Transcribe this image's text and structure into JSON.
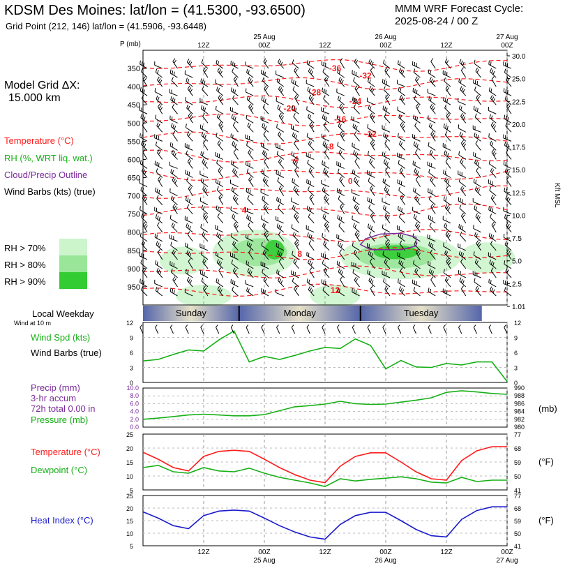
{
  "header": {
    "station": "KDSM Des Moines:  lat/lon = (41.5300, -93.6500)",
    "grid_point": "Grid Point (212, 146) lat/lon = (41.5906, -93.6448)",
    "cycle_line1": "MMM WRF Forecast Cycle:",
    "cycle_line2": "2025-08-24 / 00  Z"
  },
  "left_panel": {
    "grid_dx_line1": "Model Grid ΔX:",
    "grid_dx_line2": "15.000 km",
    "legend_temp": "Temperature (°C)",
    "legend_rh": "RH (%, WRT liq. wat.)",
    "legend_cloud": "Cloud/Precip Outline",
    "legend_wind": "Wind Barbs (kts) (true)",
    "rh70": "RH > 70%",
    "rh80": "RH > 80%",
    "rh90": "RH > 90%",
    "local_weekday": "Local Weekday",
    "wind_at_10m": "Wind at 10 m",
    "wind_spd": "Wind Spd (kts)",
    "wind_barbs": "Wind Barbs (true)",
    "precip_line1": "Precip (mm)",
    "precip_line2": "3-hr accum",
    "precip_line3": "72h total 0.00 in",
    "pressure": "Pressure (mb)",
    "temperature": "Temperature (°C)",
    "dewpoint": "Dewpoint (°C)",
    "heat_index": "Heat Index (°C)",
    "unit_mb": "(mb)",
    "unit_f1": "(°F)",
    "unit_f2": "(°F)",
    "kft_msl": "Kft MSL",
    "p_mb": "P (mb)"
  },
  "colors": {
    "temp": "#ff1a1a",
    "rh": "#16b016",
    "cloud": "#7a2a9a",
    "heat": "#1a1acc",
    "rh70": "#ccf5cc",
    "rh80": "#99e699",
    "rh90": "#33cc33"
  },
  "chart_data": [
    {
      "type": "line",
      "name": "time-height cross section",
      "x_top_labels": [
        {
          "t": 12,
          "label": "12Z"
        },
        {
          "t": 24,
          "label": "00Z",
          "date": "25 Aug"
        },
        {
          "t": 36,
          "label": "12Z"
        },
        {
          "t": 48,
          "label": "00Z",
          "date": "26 Aug"
        },
        {
          "t": 60,
          "label": "12Z"
        },
        {
          "t": 72,
          "label": "00Z",
          "date": "27 Aug"
        }
      ],
      "p_ticks": [
        350,
        400,
        450,
        500,
        550,
        600,
        650,
        700,
        750,
        800,
        850,
        900,
        950
      ],
      "ylim_p": [
        1000,
        300
      ],
      "height_ticks": [
        "30.0",
        "25.0",
        "22.5",
        "20.0",
        "17.5",
        "15.0",
        "12.5",
        "10.0",
        "7.5",
        "5.0",
        "2.5",
        "1.01"
      ],
      "temp_labels": [
        "-36",
        "-32",
        "-28",
        "-24",
        "-20",
        "-16",
        "-12",
        "-8",
        "-4",
        "0",
        "4",
        "8",
        "12"
      ]
    },
    {
      "type": "table",
      "name": "local weekday",
      "days": [
        "Sunday",
        "Monday",
        "Tuesday"
      ]
    },
    {
      "type": "line",
      "name": "wind speed",
      "ylim": [
        0,
        12
      ],
      "yticks": [
        0,
        3,
        6,
        9,
        12
      ],
      "x": [
        0,
        3,
        6,
        9,
        12,
        15,
        18,
        21,
        24,
        27,
        30,
        33,
        36,
        39,
        42,
        45,
        48,
        51,
        54,
        57,
        60,
        63,
        66,
        69,
        72
      ],
      "series": [
        {
          "values": [
            4.3,
            4.6,
            5.6,
            6.5,
            6.3,
            8.5,
            10.3,
            4.1,
            5.2,
            4.6,
            5.4,
            6.3,
            7.0,
            6.8,
            8.7,
            7.4,
            2.7,
            4.4,
            3.1,
            3.0,
            3.8,
            3.5,
            4.1,
            4.1,
            0.2
          ]
        }
      ]
    },
    {
      "type": "line",
      "name": "pressure",
      "ylim": [
        980,
        990
      ],
      "yticks_left": [
        "0.0",
        "2.0",
        "4.0",
        "6.0",
        "8.0",
        "10.0"
      ],
      "yticks_right": [
        980,
        982,
        984,
        986,
        988,
        990
      ],
      "x": [
        0,
        3,
        6,
        9,
        12,
        15,
        18,
        21,
        24,
        27,
        30,
        33,
        36,
        39,
        42,
        45,
        48,
        51,
        54,
        57,
        60,
        63,
        66,
        69,
        72
      ],
      "series": [
        {
          "values": [
            982.0,
            982.3,
            982.7,
            983.1,
            983.3,
            983.1,
            982.9,
            982.9,
            983.2,
            984.2,
            985.2,
            985.5,
            985.9,
            986.6,
            986.0,
            985.8,
            985.9,
            986.4,
            986.9,
            987.5,
            988.9,
            989.3,
            989.0,
            988.6,
            988.4
          ]
        }
      ]
    },
    {
      "type": "line",
      "name": "temperature and dewpoint",
      "ylim_c": [
        5,
        25
      ],
      "yticks_c": [
        5,
        10,
        15,
        20,
        25
      ],
      "yticks_f": [
        41,
        50,
        59,
        68,
        77
      ],
      "x": [
        0,
        3,
        6,
        9,
        12,
        15,
        18,
        21,
        24,
        27,
        30,
        33,
        36,
        39,
        42,
        45,
        48,
        51,
        54,
        57,
        60,
        63,
        66,
        69,
        72
      ],
      "series": [
        {
          "values": [
            18.5,
            16.0,
            13.0,
            11.8,
            17.0,
            18.8,
            19.2,
            18.8,
            16.0,
            13.0,
            10.5,
            8.5,
            7.6,
            13.5,
            17.0,
            18.3,
            18.3,
            15.0,
            11.5,
            9.0,
            8.5,
            15.5,
            19.0,
            20.5,
            20.5
          ]
        },
        {
          "values": [
            13.0,
            13.8,
            11.5,
            11.0,
            13.0,
            11.8,
            11.5,
            12.8,
            11.0,
            9.5,
            8.5,
            7.5,
            6.2,
            9.0,
            8.2,
            8.8,
            9.2,
            9.7,
            9.0,
            7.8,
            7.5,
            9.5,
            8.0,
            8.5,
            8.5
          ]
        }
      ]
    },
    {
      "type": "line",
      "name": "heat index",
      "ylim_c": [
        5,
        25
      ],
      "yticks_c": [
        5,
        10,
        15,
        20,
        25
      ],
      "yticks_f": [
        41,
        50,
        59,
        68,
        77
      ],
      "x_bottom_labels": [
        {
          "t": 12,
          "label": "12Z"
        },
        {
          "t": 24,
          "label": "00Z",
          "date": "25 Aug"
        },
        {
          "t": 36,
          "label": "12Z"
        },
        {
          "t": 48,
          "label": "00Z",
          "date": "26 Aug"
        },
        {
          "t": 60,
          "label": "12Z"
        },
        {
          "t": 72,
          "label": "00Z",
          "date": "27 Aug"
        }
      ],
      "x": [
        0,
        3,
        6,
        9,
        12,
        15,
        18,
        21,
        24,
        27,
        30,
        33,
        36,
        39,
        42,
        45,
        48,
        51,
        54,
        57,
        60,
        63,
        66,
        69,
        72
      ],
      "series": [
        {
          "values": [
            18.5,
            16.0,
            13.0,
            11.8,
            17.0,
            18.8,
            19.2,
            18.8,
            16.0,
            13.0,
            10.5,
            8.5,
            7.6,
            13.5,
            17.0,
            18.3,
            18.3,
            15.0,
            11.5,
            9.0,
            8.5,
            15.5,
            19.0,
            20.5,
            20.5
          ]
        }
      ]
    }
  ]
}
